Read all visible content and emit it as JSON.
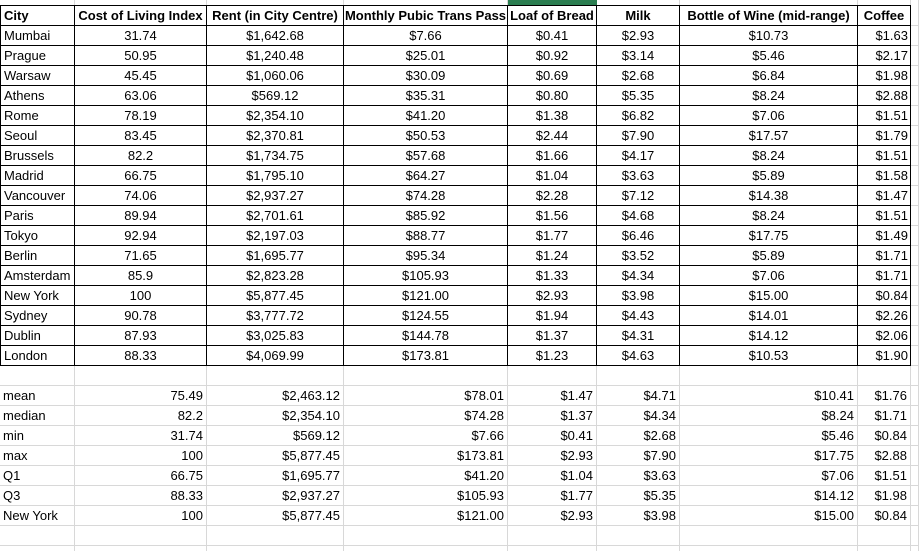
{
  "colors": {
    "selection_green": "#2a7d50",
    "gridline": "#d8d8d8",
    "table_border": "#000000"
  },
  "sheet": {
    "header": [
      "City",
      "Cost of Living Index",
      "Rent (in City Centre)",
      "Monthly Pubic Trans Pass",
      "Loaf of Bread",
      "Milk",
      "Bottle of Wine (mid-range)",
      "Coffee"
    ],
    "rows": [
      [
        "Mumbai",
        "31.74",
        "$1,642.68",
        "$7.66",
        "$0.41",
        "$2.93",
        "$10.73",
        "$1.63"
      ],
      [
        "Prague",
        "50.95",
        "$1,240.48",
        "$25.01",
        "$0.92",
        "$3.14",
        "$5.46",
        "$2.17"
      ],
      [
        "Warsaw",
        "45.45",
        "$1,060.06",
        "$30.09",
        "$0.69",
        "$2.68",
        "$6.84",
        "$1.98"
      ],
      [
        "Athens",
        "63.06",
        "$569.12",
        "$35.31",
        "$0.80",
        "$5.35",
        "$8.24",
        "$2.88"
      ],
      [
        "Rome",
        "78.19",
        "$2,354.10",
        "$41.20",
        "$1.38",
        "$6.82",
        "$7.06",
        "$1.51"
      ],
      [
        "Seoul",
        "83.45",
        "$2,370.81",
        "$50.53",
        "$2.44",
        "$7.90",
        "$17.57",
        "$1.79"
      ],
      [
        "Brussels",
        "82.2",
        "$1,734.75",
        "$57.68",
        "$1.66",
        "$4.17",
        "$8.24",
        "$1.51"
      ],
      [
        "Madrid",
        "66.75",
        "$1,795.10",
        "$64.27",
        "$1.04",
        "$3.63",
        "$5.89",
        "$1.58"
      ],
      [
        "Vancouver",
        "74.06",
        "$2,937.27",
        "$74.28",
        "$2.28",
        "$7.12",
        "$14.38",
        "$1.47"
      ],
      [
        "Paris",
        "89.94",
        "$2,701.61",
        "$85.92",
        "$1.56",
        "$4.68",
        "$8.24",
        "$1.51"
      ],
      [
        "Tokyo",
        "92.94",
        "$2,197.03",
        "$88.77",
        "$1.77",
        "$6.46",
        "$17.75",
        "$1.49"
      ],
      [
        "Berlin",
        "71.65",
        "$1,695.77",
        "$95.34",
        "$1.24",
        "$3.52",
        "$5.89",
        "$1.71"
      ],
      [
        "Amsterdam",
        "85.9",
        "$2,823.28",
        "$105.93",
        "$1.33",
        "$4.34",
        "$7.06",
        "$1.71"
      ],
      [
        "New York",
        "100",
        "$5,877.45",
        "$121.00",
        "$2.93",
        "$3.98",
        "$15.00",
        "$0.84"
      ],
      [
        "Sydney",
        "90.78",
        "$3,777.72",
        "$124.55",
        "$1.94",
        "$4.43",
        "$14.01",
        "$2.26"
      ],
      [
        "Dublin",
        "87.93",
        "$3,025.83",
        "$144.78",
        "$1.37",
        "$4.31",
        "$14.12",
        "$2.06"
      ],
      [
        "London",
        "88.33",
        "$4,069.99",
        "$173.81",
        "$1.23",
        "$4.63",
        "$10.53",
        "$1.90"
      ]
    ],
    "summary": [
      [
        "mean",
        "75.49",
        "$2,463.12",
        "$78.01",
        "$1.47",
        "$4.71",
        "$10.41",
        "$1.76"
      ],
      [
        "median",
        "82.2",
        "$2,354.10",
        "$74.28",
        "$1.37",
        "$4.34",
        "$8.24",
        "$1.71"
      ],
      [
        "min",
        "31.74",
        "$569.12",
        "$7.66",
        "$0.41",
        "$2.68",
        "$5.46",
        "$0.84"
      ],
      [
        "max",
        "100",
        "$5,877.45",
        "$173.81",
        "$2.93",
        "$7.90",
        "$17.75",
        "$2.88"
      ],
      [
        "Q1",
        "66.75",
        "$1,695.77",
        "$41.20",
        "$1.04",
        "$3.63",
        "$7.06",
        "$1.51"
      ],
      [
        "Q3",
        "88.33",
        "$2,937.27",
        "$105.93",
        "$1.77",
        "$5.35",
        "$14.12",
        "$1.98"
      ],
      [
        "New York",
        "100",
        "$5,877.45",
        "$121.00",
        "$2.93",
        "$3.98",
        "$15.00",
        "$0.84"
      ]
    ]
  }
}
